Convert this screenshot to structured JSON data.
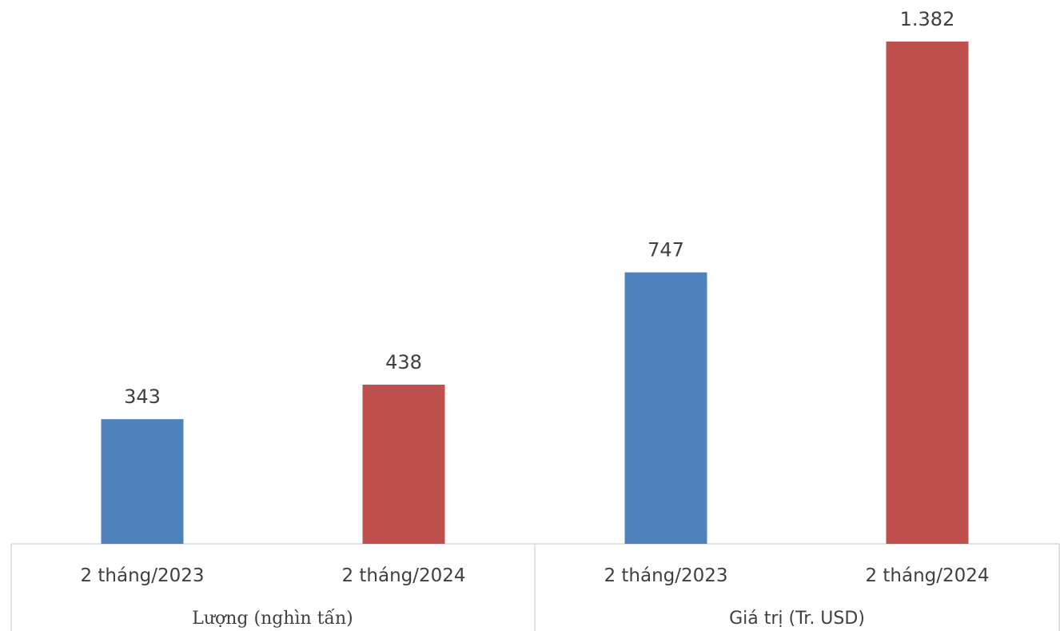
{
  "chart_data": {
    "type": "bar",
    "title": "",
    "xlabel": "",
    "ylabel": "",
    "ylim": [
      0,
      1382
    ],
    "grid": false,
    "legend": "none",
    "groups": [
      {
        "label": "Lượng (nghìn tấn)",
        "categories": [
          "2 tháng/2023",
          "2 tháng/2024"
        ],
        "values": [
          343,
          438
        ],
        "value_labels": [
          "343",
          "438"
        ]
      },
      {
        "label": "Giá trị (Tr. USD)",
        "categories": [
          "2 tháng/2023",
          "2 tháng/2024"
        ],
        "values": [
          747,
          1382
        ],
        "value_labels": [
          "747",
          "1.382"
        ]
      }
    ],
    "colors": {
      "2023": "#4f81bd",
      "2024": "#c0504d"
    }
  }
}
